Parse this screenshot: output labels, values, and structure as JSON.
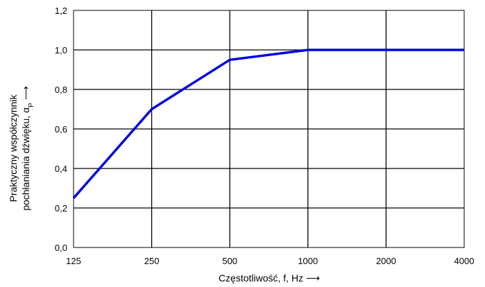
{
  "chart_data": {
    "type": "line",
    "title": "",
    "xlabel": "Częstotliwość, f, Hz ⟶",
    "ylabel_line1": "Praktyczny współczynnik",
    "ylabel_line2": "pochłaniania dźwięku, α",
    "ylabel_subscript": "P",
    "ylabel_arrow": " ⟶",
    "x_scale": "log",
    "categories": [
      "125",
      "250",
      "500",
      "1000",
      "2000",
      "4000"
    ],
    "x": [
      125,
      250,
      500,
      1000,
      2000,
      4000
    ],
    "y_ticks": [
      "0,0",
      "0,2",
      "0,4",
      "0,6",
      "0,8",
      "1,0",
      "1,2"
    ],
    "ylim": [
      0,
      1.2
    ],
    "grid": true,
    "legend": "none",
    "series": [
      {
        "color": "#0000dd",
        "values": [
          0.25,
          0.7,
          0.95,
          1.0,
          1.0,
          1.0
        ]
      }
    ]
  }
}
